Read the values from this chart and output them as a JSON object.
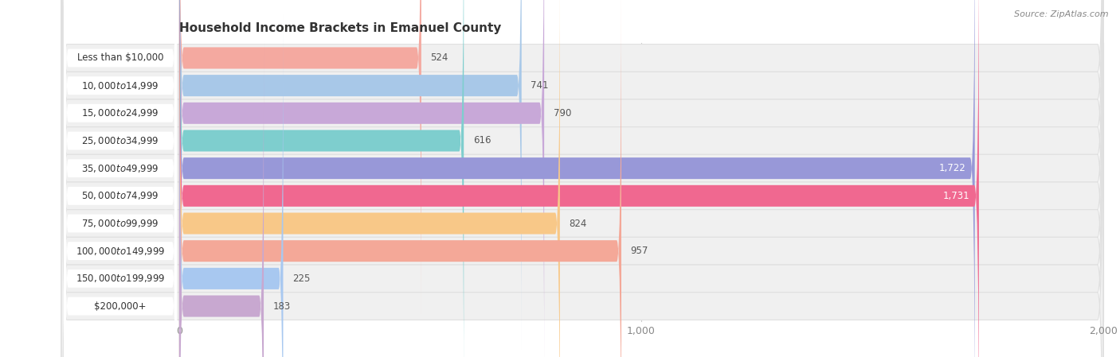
{
  "title": "Household Income Brackets in Emanuel County",
  "source": "Source: ZipAtlas.com",
  "categories": [
    "Less than $10,000",
    "$10,000 to $14,999",
    "$15,000 to $24,999",
    "$25,000 to $34,999",
    "$35,000 to $49,999",
    "$50,000 to $74,999",
    "$75,000 to $99,999",
    "$100,000 to $149,999",
    "$150,000 to $199,999",
    "$200,000+"
  ],
  "values": [
    524,
    741,
    790,
    616,
    1722,
    1731,
    824,
    957,
    225,
    183
  ],
  "bar_colors": [
    "#f4a9a0",
    "#a8c8e8",
    "#c8a8d8",
    "#7ecece",
    "#9898d8",
    "#f06890",
    "#f8c888",
    "#f4a898",
    "#a8c8f0",
    "#c8a8d0"
  ],
  "xlim": [
    0,
    2000
  ],
  "xticks": [
    0,
    1000,
    2000
  ],
  "background_color": "#ffffff",
  "row_bg_color": "#f0f0f0",
  "row_bg_border": "#e0e0e0",
  "pill_color": "#ffffff",
  "title_fontsize": 11,
  "label_fontsize": 8.5,
  "value_fontsize": 8.5,
  "source_fontsize": 8
}
